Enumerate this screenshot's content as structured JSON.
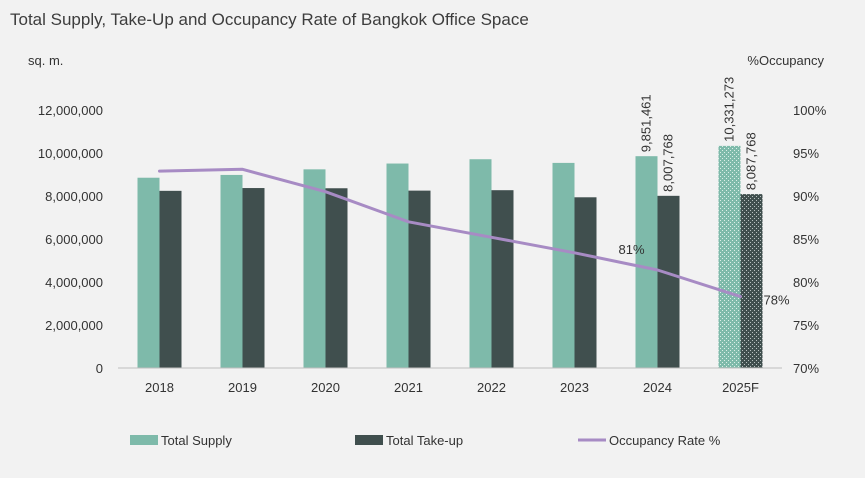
{
  "chart_data": {
    "type": "bar",
    "title": "Total Supply, Take-Up and Occupancy Rate of Bangkok Office Space",
    "ylabel_left": "sq. m.",
    "ylabel_right": "%Occupancy",
    "categories": [
      "2018",
      "2019",
      "2020",
      "2021",
      "2022",
      "2023",
      "2024",
      "2025F"
    ],
    "ylim_left": [
      0,
      12000000
    ],
    "yticks_left": [
      0,
      2000000,
      4000000,
      6000000,
      8000000,
      10000000,
      12000000
    ],
    "ytick_labels_left": [
      "0",
      "2,000,000",
      "4,000,000",
      "6,000,000",
      "8,000,000",
      "10,000,000",
      "12,000,000"
    ],
    "ylim_right": [
      70,
      100
    ],
    "yticks_right": [
      70,
      75,
      80,
      85,
      90,
      95,
      100
    ],
    "ytick_labels_right": [
      "70%",
      "75%",
      "80%",
      "85%",
      "90%",
      "95%",
      "100%"
    ],
    "series": [
      {
        "name": "Total Supply",
        "kind": "bar",
        "axis": "left",
        "color": "#7ebaaa",
        "values": [
          8850000,
          8980000,
          9240000,
          9510000,
          9710000,
          9540000,
          9851461,
          10331273
        ],
        "data_labels": [
          "",
          "",
          "",
          "",
          "",
          "",
          "9,851,461",
          "10,331,273"
        ]
      },
      {
        "name": "Total Take-up",
        "kind": "bar",
        "axis": "left",
        "color": "#404f4e",
        "values": [
          8240000,
          8370000,
          8360000,
          8250000,
          8270000,
          7940000,
          8007768,
          8087768
        ],
        "data_labels": [
          "",
          "",
          "",
          "",
          "",
          "",
          "8,007,768",
          "8,087,768"
        ]
      },
      {
        "name": "Occupancy Rate %",
        "kind": "line",
        "axis": "right",
        "color": "#a78bc4",
        "values": [
          92.9,
          93.1,
          90.5,
          87.0,
          85.2,
          83.4,
          81.4,
          78.3
        ],
        "data_labels": [
          "",
          "",
          "",
          "",
          "",
          "",
          "81%",
          "78%"
        ]
      }
    ],
    "forecast_category": "2025F",
    "grid": false,
    "legend_position": "bottom"
  }
}
